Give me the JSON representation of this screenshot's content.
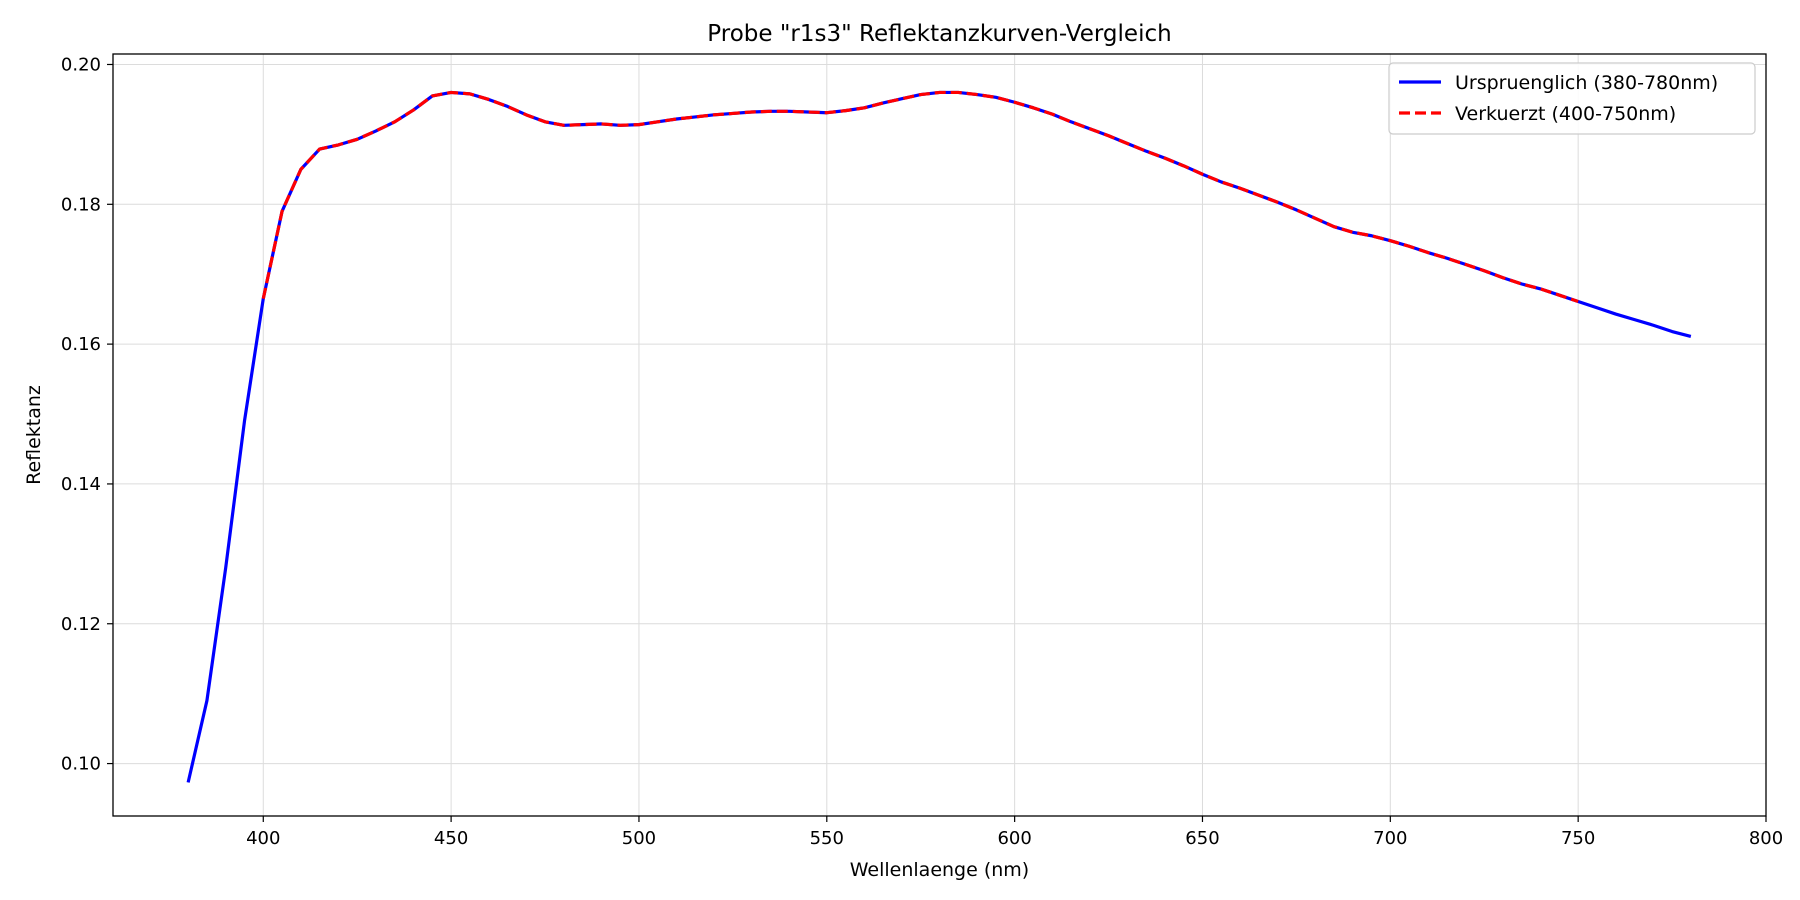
{
  "chart_data": {
    "type": "line",
    "title": "Probe \"r1s3\" Reflektanzkurven-Vergleich",
    "xlabel": "Wellenlaenge (nm)",
    "ylabel": "Reflektanz",
    "xlim": [
      360,
      800
    ],
    "ylim": [
      0.0925,
      0.2015
    ],
    "xticks": [
      400,
      450,
      500,
      550,
      600,
      650,
      700,
      750,
      800
    ],
    "xtick_labels": [
      "400",
      "450",
      "500",
      "550",
      "600",
      "650",
      "700",
      "750",
      "800"
    ],
    "yticks": [
      0.1,
      0.12,
      0.14,
      0.16,
      0.18,
      0.2
    ],
    "ytick_labels": [
      "0.10",
      "0.12",
      "0.14",
      "0.16",
      "0.18",
      "0.20"
    ],
    "grid": true,
    "legend": "top-right",
    "series": [
      {
        "name": "Urspruenglich (380-780nm)",
        "color": "#0000ff",
        "style": "solid",
        "x": [
          380,
          385,
          390,
          395,
          400,
          405,
          410,
          415,
          420,
          425,
          430,
          435,
          440,
          445,
          450,
          455,
          460,
          465,
          470,
          475,
          480,
          485,
          490,
          495,
          500,
          505,
          510,
          515,
          520,
          525,
          530,
          535,
          540,
          545,
          550,
          555,
          560,
          565,
          570,
          575,
          580,
          585,
          590,
          595,
          600,
          605,
          610,
          615,
          620,
          625,
          630,
          635,
          640,
          645,
          650,
          655,
          660,
          665,
          670,
          675,
          680,
          685,
          690,
          695,
          700,
          705,
          710,
          715,
          720,
          725,
          730,
          735,
          740,
          745,
          750,
          755,
          760,
          765,
          770,
          775,
          780
        ],
        "y": [
          0.0973,
          0.109,
          0.128,
          0.149,
          0.1665,
          0.179,
          0.185,
          0.1879,
          0.1885,
          0.1893,
          0.1905,
          0.1918,
          0.1935,
          0.1955,
          0.196,
          0.1958,
          0.195,
          0.194,
          0.1928,
          0.1918,
          0.1913,
          0.1914,
          0.1915,
          0.1913,
          0.1914,
          0.1918,
          0.1922,
          0.1925,
          0.1928,
          0.193,
          0.1932,
          0.1933,
          0.1933,
          0.1932,
          0.1931,
          0.1934,
          0.1938,
          0.1945,
          0.1951,
          0.1957,
          0.196,
          0.196,
          0.1957,
          0.1953,
          0.1946,
          0.1938,
          0.1929,
          0.1918,
          0.1908,
          0.1898,
          0.1887,
          0.1876,
          0.1866,
          0.1855,
          0.1843,
          0.1832,
          0.1823,
          0.1813,
          0.1803,
          0.1792,
          0.178,
          0.1768,
          0.176,
          0.1755,
          0.1748,
          0.174,
          0.1731,
          0.1723,
          0.1714,
          0.1705,
          0.1695,
          0.1686,
          0.1679,
          0.167,
          0.1661,
          0.1652,
          0.1643,
          0.1635,
          0.1627,
          0.1618,
          0.1611
        ]
      },
      {
        "name": "Verkuerzt (400-750nm)",
        "color": "#ff0000",
        "style": "dashed",
        "x": [
          400,
          405,
          410,
          415,
          420,
          425,
          430,
          435,
          440,
          445,
          450,
          455,
          460,
          465,
          470,
          475,
          480,
          485,
          490,
          495,
          500,
          505,
          510,
          515,
          520,
          525,
          530,
          535,
          540,
          545,
          550,
          555,
          560,
          565,
          570,
          575,
          580,
          585,
          590,
          595,
          600,
          605,
          610,
          615,
          620,
          625,
          630,
          635,
          640,
          645,
          650,
          655,
          660,
          665,
          670,
          675,
          680,
          685,
          690,
          695,
          700,
          705,
          710,
          715,
          720,
          725,
          730,
          735,
          740,
          745,
          750
        ],
        "y": [
          0.1665,
          0.179,
          0.185,
          0.1879,
          0.1885,
          0.1893,
          0.1905,
          0.1918,
          0.1935,
          0.1955,
          0.196,
          0.1958,
          0.195,
          0.194,
          0.1928,
          0.1918,
          0.1913,
          0.1914,
          0.1915,
          0.1913,
          0.1914,
          0.1918,
          0.1922,
          0.1925,
          0.1928,
          0.193,
          0.1932,
          0.1933,
          0.1933,
          0.1932,
          0.1931,
          0.1934,
          0.1938,
          0.1945,
          0.1951,
          0.1957,
          0.196,
          0.196,
          0.1957,
          0.1953,
          0.1946,
          0.1938,
          0.1929,
          0.1918,
          0.1908,
          0.1898,
          0.1887,
          0.1876,
          0.1866,
          0.1855,
          0.1843,
          0.1832,
          0.1823,
          0.1813,
          0.1803,
          0.1792,
          0.178,
          0.1768,
          0.176,
          0.1755,
          0.1748,
          0.174,
          0.1731,
          0.1723,
          0.1714,
          0.1705,
          0.1695,
          0.1686,
          0.1679,
          0.167,
          0.1661
        ]
      }
    ]
  }
}
